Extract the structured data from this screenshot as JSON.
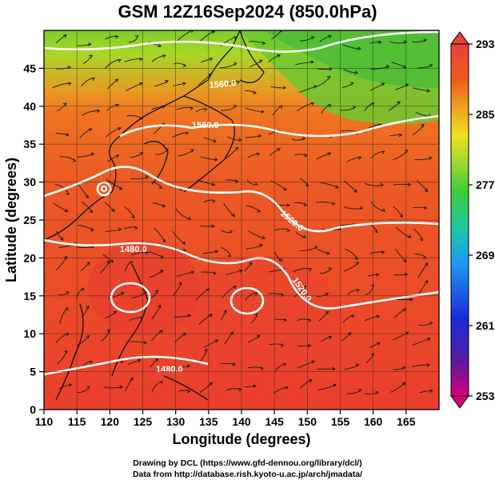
{
  "title": "GSM 12Z16Sep2024 (850.0hPa)",
  "map": {
    "xlabel": "Longitude (degrees)",
    "ylabel": "Latitude  (degrees)",
    "x_ticks": [
      "110",
      "115",
      "120",
      "125",
      "130",
      "135",
      "140",
      "145",
      "150",
      "155",
      "160",
      "165"
    ],
    "y_ticks": [
      "0",
      "5",
      "10",
      "15",
      "20",
      "25",
      "30",
      "35",
      "40",
      "45"
    ],
    "xlim": [
      110,
      170
    ],
    "ylim": [
      0,
      50
    ],
    "contour_labels": [
      "1560.0",
      "1560.0",
      "1520.0",
      "1520.0",
      "1480.0",
      "1480.0",
      "1480.0"
    ],
    "field": "temperature (shaded), geopotential height (white contours), wind (streamlines)",
    "colorbar": {
      "ticks": [
        "293",
        "285",
        "277",
        "269",
        "261",
        "253"
      ],
      "range": [
        253,
        293
      ],
      "colors": [
        "#d4007a",
        "#5a1aa0",
        "#1a2ad8",
        "#1e9cf0",
        "#20c8a0",
        "#3ccc3c",
        "#9ad830",
        "#f0e020",
        "#f0a020",
        "#ee5a1e",
        "#e8403a"
      ]
    }
  },
  "credits": {
    "line1": "Drawing by DCL (https://www.gfd-dennou.org/library/dcl/)",
    "line2": "Data from http://database.rish.kyoto-u.ac.jp/arch/jmadata/"
  }
}
